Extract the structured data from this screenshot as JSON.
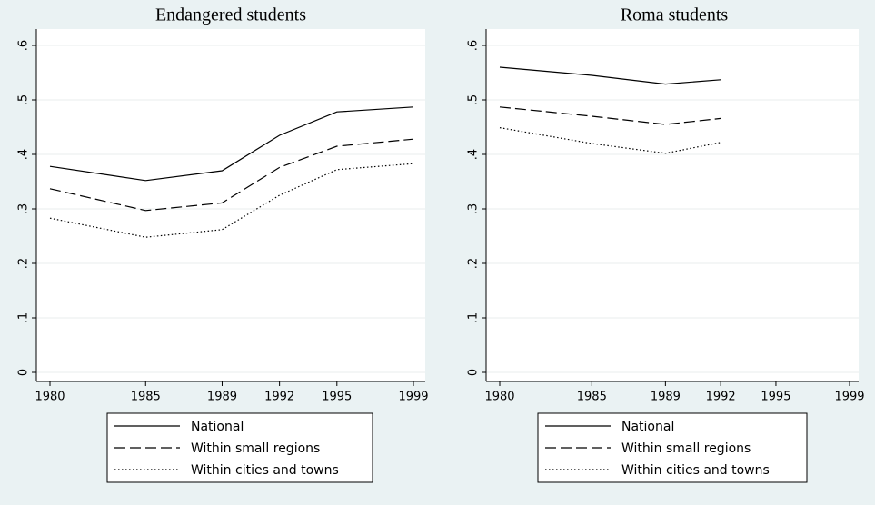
{
  "chart_data": [
    {
      "type": "line",
      "title": "Endangered students",
      "x": [
        1980,
        1985,
        1989,
        1992,
        1995,
        1999
      ],
      "xlim": [
        1980,
        1999
      ],
      "xticks": [
        1980,
        1985,
        1989,
        1992,
        1995,
        1999
      ],
      "ylim": [
        0,
        0.6
      ],
      "yticks": [
        0,
        {
          "value": 0.1,
          "label": ".1"
        },
        {
          "value": 0.2,
          "label": ".2"
        },
        {
          "value": 0.3,
          "label": ".3"
        },
        {
          "value": 0.4,
          "label": ".4"
        },
        {
          "value": 0.5,
          "label": ".5"
        },
        {
          "value": 0.6,
          "label": ".6"
        }
      ],
      "grid": true,
      "series": [
        {
          "name": "National",
          "color": "#000000",
          "dash": "solid",
          "values": [
            0.378,
            0.352,
            0.37,
            0.435,
            0.478,
            0.487
          ]
        },
        {
          "name": "Within small regions",
          "color": "#000000",
          "dash": "dashed",
          "values": [
            0.337,
            0.297,
            0.311,
            0.376,
            0.415,
            0.428
          ]
        },
        {
          "name": "Within cities and towns",
          "color": "#000000",
          "dash": "dotted",
          "values": [
            0.283,
            0.248,
            0.262,
            0.325,
            0.372,
            0.383
          ]
        }
      ]
    },
    {
      "type": "line",
      "title": "Roma students",
      "x": [
        1980,
        1985,
        1989,
        1992,
        1995,
        1999
      ],
      "xlim": [
        1980,
        1999
      ],
      "xticks": [
        1980,
        1985,
        1989,
        1992,
        1995,
        1999
      ],
      "ylim": [
        0,
        0.6
      ],
      "yticks": [
        0,
        {
          "value": 0.1,
          "label": ".1"
        },
        {
          "value": 0.2,
          "label": ".2"
        },
        {
          "value": 0.3,
          "label": ".3"
        },
        {
          "value": 0.4,
          "label": ".4"
        },
        {
          "value": 0.5,
          "label": ".5"
        },
        {
          "value": 0.6,
          "label": ".6"
        }
      ],
      "grid": true,
      "series": [
        {
          "name": "National",
          "color": "#000000",
          "dash": "solid",
          "values": [
            0.56,
            0.545,
            0.529,
            0.537,
            null,
            null
          ]
        },
        {
          "name": "Within small regions",
          "color": "#000000",
          "dash": "dashed",
          "values": [
            0.487,
            0.47,
            0.455,
            0.466,
            null,
            null
          ]
        },
        {
          "name": "Within cities and towns",
          "color": "#000000",
          "dash": "dotted",
          "values": [
            0.449,
            0.42,
            0.402,
            0.422,
            null,
            null
          ]
        }
      ]
    }
  ]
}
